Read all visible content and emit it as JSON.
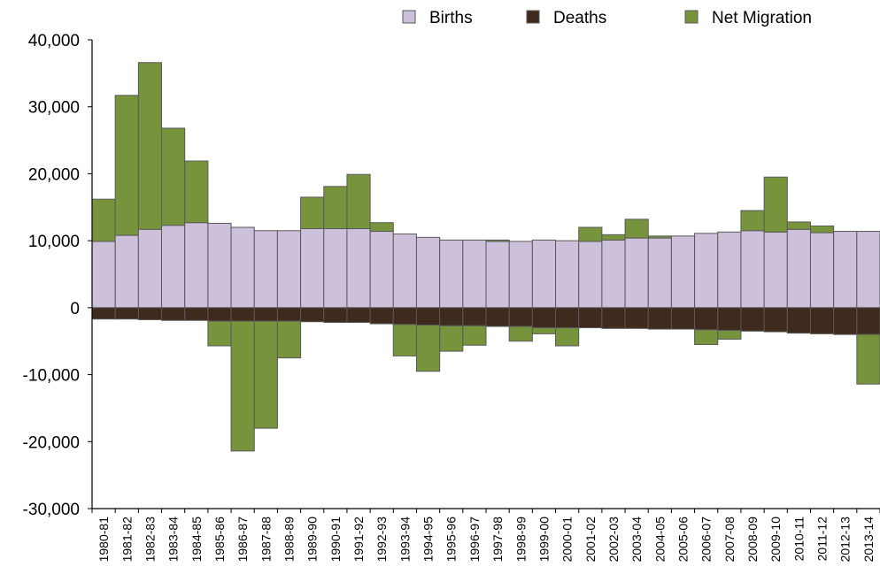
{
  "chart_data": {
    "type": "bar",
    "stacked": true,
    "title": "",
    "xlabel": "",
    "ylabel": "",
    "ylim": [
      -30000,
      40000
    ],
    "yticks": [
      40000,
      30000,
      20000,
      10000,
      0,
      -10000,
      -20000,
      -30000
    ],
    "ytick_labels": [
      "40,000",
      "30,000",
      "20,000",
      "10,000",
      "0",
      "-10,000",
      "-20,000",
      "-30,000"
    ],
    "grid": false,
    "legend_position": "top",
    "categories": [
      "1980-81",
      "1981-82",
      "1982-83",
      "1983-84",
      "1984-85",
      "1985-86",
      "1986-87",
      "1987-88",
      "1988-89",
      "1989-90",
      "1990-91",
      "1991-92",
      "1992-93",
      "1993-94",
      "1994-95",
      "1995-96",
      "1996-97",
      "1997-98",
      "1998-99",
      "1999-00",
      "2000-01",
      "2001-02",
      "2002-03",
      "2003-04",
      "2004-05",
      "2005-06",
      "2006-07",
      "2007-08",
      "2008-09",
      "2009-10",
      "2010-11",
      "2011-12",
      "2012-13",
      "2013-14"
    ],
    "series": [
      {
        "name": "Births",
        "color": "#ccc0da",
        "values": [
          9900,
          10800,
          11700,
          12300,
          12700,
          12600,
          12000,
          11500,
          11500,
          11800,
          11800,
          11800,
          11400,
          11000,
          10500,
          10100,
          10100,
          9900,
          9900,
          10100,
          10000,
          9900,
          10100,
          10400,
          10400,
          10700,
          11100,
          11300,
          11500,
          11300,
          11700,
          11200,
          11400,
          11400
        ]
      },
      {
        "name": "Deaths",
        "color": "#3f2b1d",
        "values": [
          -1700,
          -1700,
          -1800,
          -1900,
          -1900,
          -2000,
          -2000,
          -2000,
          -2000,
          -2100,
          -2200,
          -2200,
          -2400,
          -2500,
          -2600,
          -2700,
          -2700,
          -2800,
          -2800,
          -3000,
          -3000,
          -3000,
          -3100,
          -3100,
          -3200,
          -3200,
          -3300,
          -3400,
          -3500,
          -3600,
          -3800,
          -3900,
          -4000,
          -4000
        ]
      },
      {
        "name": "Net Migration",
        "color": "#77933c",
        "values": [
          6300,
          20900,
          24900,
          14500,
          9200,
          -3700,
          -19400,
          -16000,
          -5500,
          4700,
          6300,
          8100,
          1300,
          -4700,
          -6900,
          -3800,
          -2900,
          200,
          -2200,
          -900,
          -2700,
          2100,
          800,
          2800,
          300,
          0,
          -2200,
          -1300,
          3000,
          8200,
          1100,
          1000,
          0,
          -7400
        ]
      }
    ]
  }
}
